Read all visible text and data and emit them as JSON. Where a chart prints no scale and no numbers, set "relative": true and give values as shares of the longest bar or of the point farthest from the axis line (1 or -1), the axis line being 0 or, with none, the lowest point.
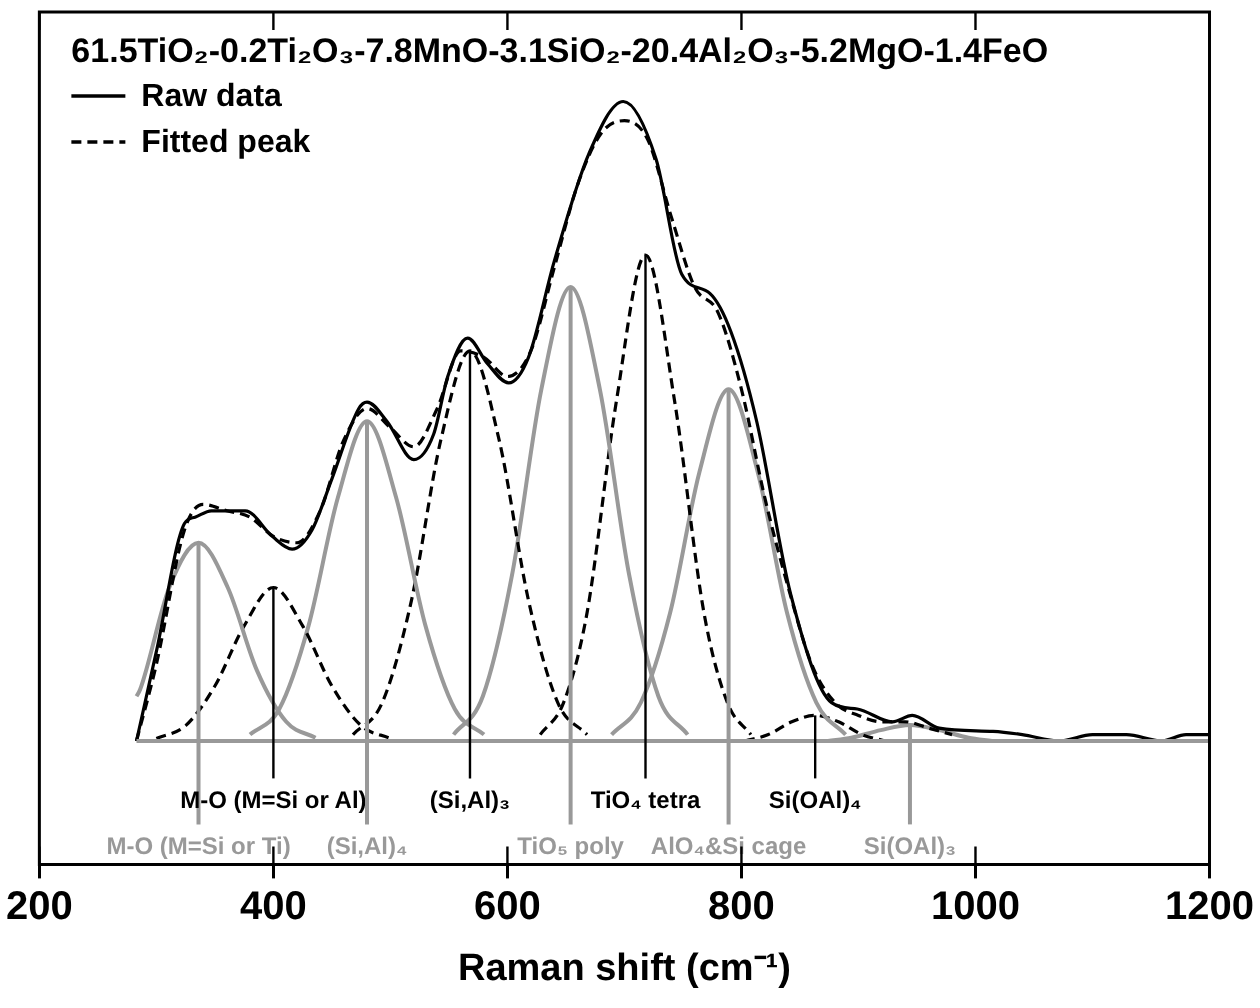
{
  "chart_data": {
    "type": "line",
    "relative": true,
    "title": "61.5TiO₂-0.2Ti₂O₃-7.8MnO-3.1SiO₂-20.4Al₂O₃-5.2MgO-1.4FeO",
    "xlabel": "Raman shift (cm⁻¹)",
    "xlim": [
      200,
      1200
    ],
    "xticks": [
      200,
      400,
      600,
      800,
      1000,
      1200
    ],
    "legend": "top left",
    "marker": "none",
    "series": [
      {
        "name": "Raw data",
        "color": "#000000",
        "line_style": "solid",
        "x": [
          283,
          300,
          324,
          333,
          347,
          376,
          399,
          416,
          433,
          450,
          473,
          480,
          497,
          520,
          537,
          549,
          566,
          583,
          601,
          618,
          640,
          670,
          699,
          727,
          749,
          773,
          791,
          813,
          842,
          877,
          899,
          929,
          946,
          969,
          1015,
          1040,
          1072,
          1100,
          1129,
          1159,
          1180,
          1200
        ],
        "values": [
          0.0,
          0.14,
          0.34,
          0.35,
          0.36,
          0.36,
          0.32,
          0.3,
          0.33,
          0.41,
          0.52,
          0.53,
          0.5,
          0.44,
          0.48,
          0.57,
          0.63,
          0.59,
          0.56,
          0.6,
          0.75,
          0.92,
          1.0,
          0.91,
          0.73,
          0.7,
          0.64,
          0.5,
          0.23,
          0.06,
          0.05,
          0.03,
          0.04,
          0.02,
          0.015,
          0.01,
          0.0,
          0.01,
          0.01,
          0.0,
          0.01,
          0.01
        ]
      },
      {
        "name": "Fitted peak",
        "color": "#000000",
        "line_style": "dashed",
        "x": [
          283,
          300,
          324,
          340,
          360,
          380,
          400,
          420,
          440,
          460,
          480,
          500,
          520,
          540,
          560,
          580,
          600,
          620,
          640,
          660,
          680,
          700,
          720,
          740,
          760,
          780,
          800,
          820,
          840,
          860,
          880,
          900,
          920,
          940,
          960,
          980
        ],
        "values": [
          0.0,
          0.12,
          0.33,
          0.37,
          0.36,
          0.35,
          0.32,
          0.31,
          0.36,
          0.47,
          0.52,
          0.49,
          0.46,
          0.52,
          0.61,
          0.6,
          0.57,
          0.61,
          0.74,
          0.87,
          0.95,
          0.97,
          0.94,
          0.82,
          0.71,
          0.67,
          0.55,
          0.38,
          0.24,
          0.12,
          0.06,
          0.04,
          0.03,
          0.03,
          0.02,
          0.01
        ]
      },
      {
        "color": "#999999",
        "line_style": "solid",
        "x": [
          283,
          286,
          311,
          336,
          361,
          386,
          411,
          436
        ],
        "values": [
          0.07,
          0.08,
          0.24,
          0.31,
          0.24,
          0.11,
          0.03,
          0.005
        ]
      },
      {
        "color": "#000000",
        "line_style": "dashed",
        "x": [
          300,
          325,
          350,
          375,
          400,
          425,
          450,
          475,
          500
        ],
        "values": [
          0.004,
          0.024,
          0.086,
          0.18,
          0.24,
          0.18,
          0.086,
          0.024,
          0.004
        ]
      },
      {
        "color": "#999999",
        "line_style": "solid",
        "x": [
          380,
          405,
          430,
          455,
          480,
          505,
          530,
          555,
          580
        ],
        "values": [
          0.01,
          0.05,
          0.18,
          0.38,
          0.5,
          0.38,
          0.18,
          0.05,
          0.01
        ]
      },
      {
        "color": "#000000",
        "line_style": "dashed",
        "x": [
          468,
          493,
          518,
          543,
          568,
          593,
          618,
          643,
          668
        ],
        "values": [
          0.01,
          0.06,
          0.22,
          0.47,
          0.61,
          0.47,
          0.22,
          0.06,
          0.01
        ]
      },
      {
        "color": "#999999",
        "line_style": "solid",
        "x": [
          554,
          579,
          604,
          629,
          654,
          679,
          704,
          729,
          754
        ],
        "values": [
          0.01,
          0.07,
          0.26,
          0.55,
          0.71,
          0.55,
          0.26,
          0.07,
          0.01
        ]
      },
      {
        "color": "#000000",
        "line_style": "dashed",
        "x": [
          628,
          648,
          668,
          693,
          718,
          743,
          768,
          788,
          808
        ],
        "values": [
          0.01,
          0.06,
          0.2,
          0.53,
          0.76,
          0.53,
          0.2,
          0.06,
          0.01
        ]
      },
      {
        "color": "#999999",
        "line_style": "solid",
        "x": [
          689,
          714,
          739,
          764,
          789,
          814,
          839,
          864,
          889
        ],
        "values": [
          0.01,
          0.06,
          0.2,
          0.42,
          0.55,
          0.42,
          0.2,
          0.06,
          0.01
        ]
      },
      {
        "color": "#000000",
        "line_style": "dashed",
        "x": [
          803,
          823,
          843,
          863,
          883,
          903,
          923
        ],
        "values": [
          0.0,
          0.01,
          0.03,
          0.04,
          0.03,
          0.01,
          0.0
        ]
      },
      {
        "color": "#999999",
        "line_style": "solid",
        "x": [
          874,
          894,
          919,
          944,
          969,
          994,
          1014
        ],
        "values": [
          0.0,
          0.005,
          0.017,
          0.025,
          0.017,
          0.005,
          0.0
        ]
      }
    ],
    "annotations": [
      {
        "text": "M-O (M=Si or Ti)",
        "x": 336,
        "y": 0.31
      },
      {
        "text": "M-O (M=Si or Al)",
        "x": 400,
        "y": 0.24
      },
      {
        "text": "(Si,Al)₄",
        "x": 480,
        "y": 0.5
      },
      {
        "text": "(Si,Al)₃",
        "x": 568,
        "y": 0.61
      },
      {
        "text": "TiO₅ poly",
        "x": 654,
        "y": 0.71
      },
      {
        "text": "TiO₄ tetra",
        "x": 718,
        "y": 0.76
      },
      {
        "text": "AlO₄&Si cage",
        "x": 789,
        "y": 0.55
      },
      {
        "text": "Si(OAl)₄",
        "x": 863,
        "y": 0.04
      },
      {
        "text": "Si(OAl)₃",
        "x": 944,
        "y": 0.025
      }
    ]
  }
}
